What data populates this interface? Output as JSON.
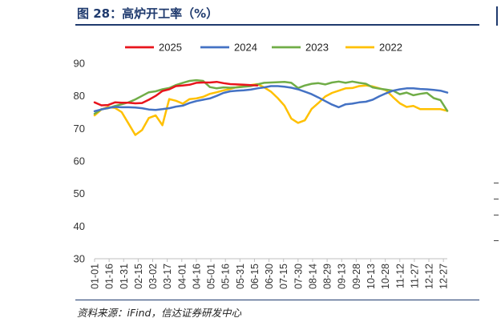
{
  "title": "图 28：高炉开工率（%）",
  "source": "资料来源：iFind，信达证券研发中心",
  "chart_data": {
    "type": "line",
    "title": "",
    "xlabel": "",
    "ylabel": "",
    "ylim": [
      30,
      90
    ],
    "yticks": [
      30,
      40,
      50,
      60,
      70,
      80,
      90
    ],
    "grid": false,
    "legend_position": "top",
    "x_tick_labels": [
      "01-01",
      "01-16",
      "01-31",
      "02-15",
      "03-02",
      "03-17",
      "04-01",
      "04-16",
      "05-01",
      "05-16",
      "05-31",
      "06-15",
      "06-30",
      "07-15",
      "07-30",
      "08-14",
      "08-29",
      "09-13",
      "09-28",
      "10-13",
      "10-28",
      "11-12",
      "11-27",
      "12-12",
      "12-27"
    ],
    "x_tick_days": [
      1,
      16,
      31,
      46,
      61,
      76,
      91,
      106,
      121,
      136,
      151,
      166,
      181,
      196,
      211,
      226,
      241,
      256,
      271,
      286,
      301,
      316,
      331,
      346,
      361
    ],
    "series": [
      {
        "name": "2025",
        "color": "#e8141c",
        "x": [
          1,
          8,
          15,
          22,
          29,
          36,
          43,
          50,
          57,
          64,
          71,
          78,
          85,
          92,
          99,
          106,
          113,
          120,
          127,
          134,
          141,
          148,
          155,
          162,
          169
        ],
        "y": [
          78.0,
          77.1,
          77.2,
          78.0,
          77.9,
          77.9,
          77.7,
          77.8,
          78.8,
          80.0,
          81.5,
          82.0,
          83.0,
          83.2,
          83.4,
          84.0,
          84.1,
          84.1,
          84.3,
          83.9,
          83.6,
          83.5,
          83.4,
          83.3,
          83.2
        ]
      },
      {
        "name": "2024",
        "color": "#4472c4",
        "x": [
          1,
          8,
          15,
          22,
          29,
          36,
          43,
          50,
          57,
          64,
          71,
          78,
          85,
          92,
          99,
          106,
          113,
          120,
          127,
          134,
          141,
          148,
          155,
          162,
          169,
          176,
          183,
          190,
          197,
          204,
          211,
          218,
          225,
          232,
          239,
          246,
          253,
          260,
          267,
          274,
          281,
          288,
          295,
          302,
          309,
          316,
          323,
          330,
          337,
          344,
          351,
          358,
          365
        ],
        "y": [
          75.3,
          75.8,
          76.3,
          76.6,
          76.5,
          76.5,
          76.4,
          76.2,
          75.8,
          75.7,
          75.9,
          76.2,
          76.7,
          77.0,
          77.8,
          78.4,
          78.8,
          79.2,
          80.0,
          80.9,
          81.4,
          81.6,
          81.7,
          81.9,
          82.3,
          82.6,
          83.0,
          83.0,
          82.8,
          82.5,
          82.0,
          81.3,
          80.5,
          79.5,
          78.4,
          77.3,
          76.5,
          77.4,
          77.6,
          78.0,
          78.2,
          78.8,
          79.9,
          80.8,
          81.6,
          82.0,
          82.3,
          82.3,
          82.1,
          82.0,
          81.8,
          81.6,
          81.0
        ]
      },
      {
        "name": "2023",
        "color": "#70ad47",
        "x": [
          1,
          8,
          15,
          22,
          29,
          36,
          43,
          50,
          57,
          64,
          71,
          78,
          85,
          92,
          99,
          106,
          113,
          120,
          127,
          134,
          141,
          148,
          155,
          162,
          169,
          176,
          183,
          190,
          197,
          204,
          211,
          218,
          225,
          232,
          239,
          246,
          253,
          260,
          267,
          274,
          281,
          288,
          295,
          302,
          309,
          316,
          323,
          330,
          337,
          344,
          351,
          358,
          365
        ],
        "y": [
          74.5,
          75.9,
          76.2,
          76.9,
          77.4,
          78.0,
          78.9,
          80.0,
          81.1,
          81.4,
          82.0,
          82.4,
          83.3,
          84.0,
          84.6,
          84.8,
          84.6,
          82.7,
          82.3,
          82.6,
          82.5,
          82.6,
          82.8,
          83.0,
          83.5,
          84.0,
          84.1,
          84.2,
          84.3,
          84.0,
          82.4,
          83.2,
          83.7,
          83.9,
          83.5,
          84.1,
          84.4,
          84.0,
          84.4,
          84.0,
          83.7,
          82.6,
          82.2,
          81.9,
          81.6,
          80.5,
          81.0,
          80.2,
          80.6,
          80.9,
          79.3,
          78.7,
          75.4
        ]
      },
      {
        "name": "2022",
        "color": "#ffc000",
        "x": [
          1,
          8,
          15,
          22,
          29,
          36,
          43,
          50,
          57,
          64,
          71,
          78,
          85,
          92,
          99,
          106,
          113,
          120,
          127,
          134,
          141,
          148,
          155,
          162,
          169,
          176,
          183,
          190,
          197,
          204,
          211,
          218,
          225,
          232,
          239,
          246,
          253,
          260,
          267,
          274,
          281,
          288,
          295,
          302,
          309,
          316,
          323,
          330,
          337,
          344,
          351,
          358,
          365
        ],
        "y": [
          74.0,
          75.8,
          76.6,
          76.3,
          75.0,
          71.5,
          68.0,
          69.5,
          73.2,
          74.0,
          71.0,
          79.0,
          78.5,
          77.6,
          79.0,
          79.2,
          79.7,
          80.6,
          81.1,
          81.7,
          82.1,
          82.7,
          83.0,
          83.3,
          83.6,
          82.6,
          81.3,
          79.3,
          77.0,
          73.0,
          71.7,
          72.5,
          76.0,
          77.8,
          79.8,
          80.9,
          81.6,
          82.3,
          82.4,
          83.0,
          83.2,
          82.9,
          82.3,
          81.7,
          79.6,
          77.7,
          76.6,
          76.9,
          75.9,
          75.9,
          75.9,
          75.9,
          75.4
        ]
      }
    ]
  }
}
